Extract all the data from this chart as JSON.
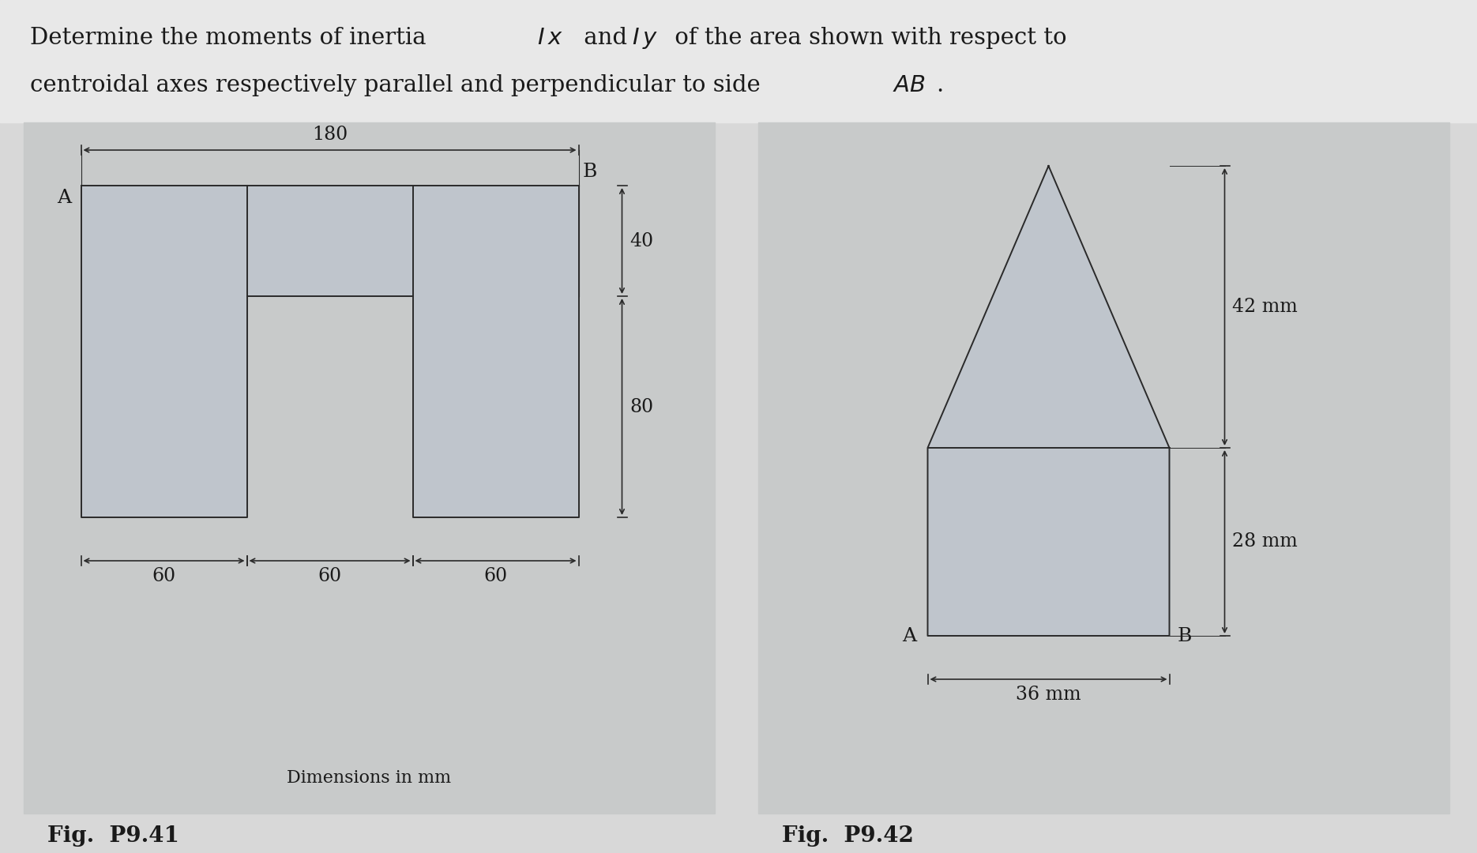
{
  "bg_color": "#d8d8d8",
  "panel_color": "#c8caca",
  "shape_color": "#bfc5cc",
  "line_color": "#2a2a2a",
  "text_color": "#1a1a1a",
  "title1": "Determine the moments of inertia ",
  "title1b": "I x",
  "title1c": " and ",
  "title1d": "I y",
  "title1e": " of the area shown with respect to",
  "title2": "centroidal axes respectively parallel and perpendicular to side ",
  "title2b": "AB",
  "title2c": ".",
  "fig1_label": "Fig. P9.41",
  "fig2_label": "Fig. P9.42",
  "dim_label": "Dimensions in mm"
}
